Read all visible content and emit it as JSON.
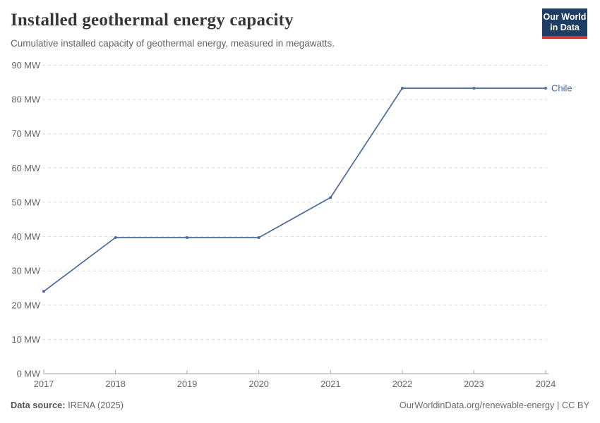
{
  "header": {
    "title": "Installed geothermal energy capacity",
    "subtitle": "Cumulative installed capacity of geothermal energy, measured in megawatts."
  },
  "logo": {
    "line1": "Our World",
    "line2": "in Data",
    "bg_color": "#1D3D63",
    "accent_color": "#D0342C"
  },
  "footer": {
    "source_label": "Data source:",
    "source_value": " IRENA (2025)",
    "credit": "OurWorldinData.org/renewable-energy | CC BY"
  },
  "colors": {
    "line": "#4C6A9C",
    "gridline": "#dddddd",
    "axis": "#a5a5a5",
    "tick_label": "#666666"
  },
  "chart_data": {
    "type": "line",
    "title": "Installed geothermal energy capacity",
    "subtitle": "Cumulative installed capacity of geothermal energy, measured in megawatts.",
    "x": [
      2017,
      2018,
      2019,
      2020,
      2021,
      2022,
      2023,
      2024
    ],
    "series": [
      {
        "name": "Chile",
        "color": "#4C6A9C",
        "values": [
          24,
          39.7,
          39.7,
          39.7,
          51.4,
          83.3,
          83.3,
          83.3
        ]
      }
    ],
    "xlabel": "",
    "ylabel": "",
    "ylim": [
      0,
      90
    ],
    "ytick_step": 10,
    "ytick_suffix": " MW",
    "grid": "dashed-horizontal",
    "legend": "end-of-line-label"
  }
}
